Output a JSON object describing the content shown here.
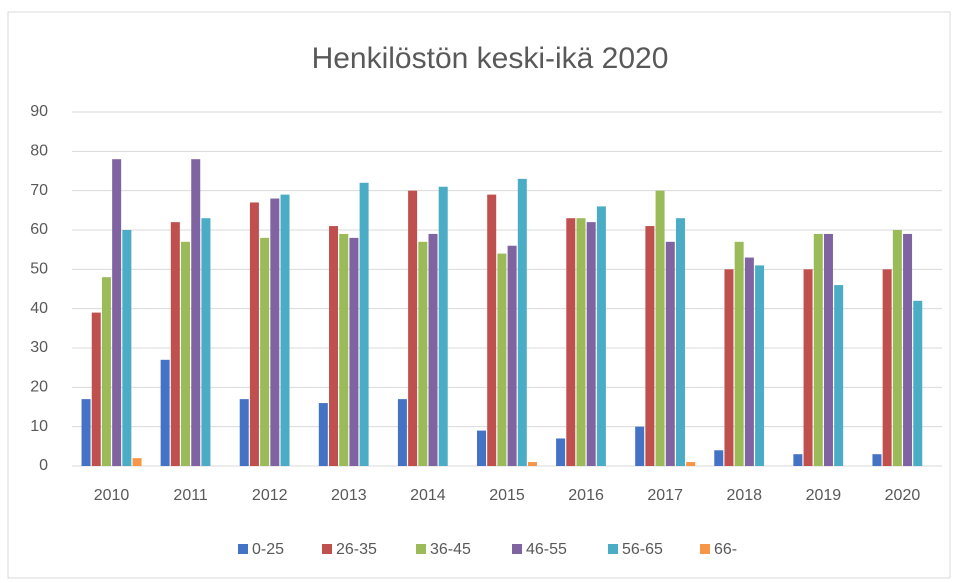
{
  "chart_data": {
    "type": "bar",
    "title": "Henkilöstön keski-ikä 2020",
    "categories": [
      "2010",
      "2011",
      "2012",
      "2013",
      "2014",
      "2015",
      "2016",
      "2017",
      "2018",
      "2019",
      "2020"
    ],
    "series": [
      {
        "name": "0-25",
        "color": "#4472c4",
        "values": [
          17,
          27,
          17,
          16,
          17,
          9,
          7,
          10,
          4,
          3,
          3
        ]
      },
      {
        "name": "26-35",
        "color": "#c0504d",
        "values": [
          39,
          62,
          67,
          61,
          70,
          69,
          63,
          61,
          50,
          50,
          50
        ]
      },
      {
        "name": "36-45",
        "color": "#9bbb59",
        "values": [
          48,
          57,
          58,
          59,
          57,
          54,
          63,
          70,
          57,
          59,
          60
        ]
      },
      {
        "name": "46-55",
        "color": "#8064a2",
        "values": [
          78,
          78,
          68,
          58,
          59,
          56,
          62,
          57,
          53,
          59,
          59
        ]
      },
      {
        "name": "56-65",
        "color": "#4bacc6",
        "values": [
          60,
          63,
          69,
          72,
          71,
          73,
          66,
          63,
          51,
          46,
          42
        ]
      },
      {
        "name": "66-",
        "color": "#f79646",
        "values": [
          2,
          0,
          0,
          0,
          0,
          1,
          0,
          1,
          0,
          0,
          0
        ]
      }
    ],
    "ylim": [
      0,
      90
    ],
    "yticks": [
      0,
      10,
      20,
      30,
      40,
      50,
      60,
      70,
      80,
      90
    ],
    "grid": true,
    "legend": "bottom"
  }
}
